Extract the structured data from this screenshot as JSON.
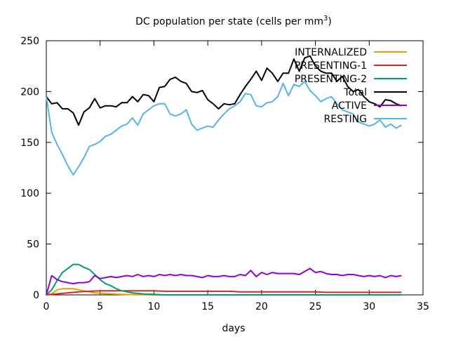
{
  "chart_data": {
    "type": "line",
    "title": "DC population per state (cells per mm",
    "title_superscript": "3",
    "title_suffix": ")",
    "xlabel": "days",
    "ylabel": "",
    "xlim": [
      0,
      35
    ],
    "ylim": [
      0,
      250
    ],
    "xticks": [
      0,
      5,
      10,
      15,
      20,
      25,
      30,
      35
    ],
    "yticks": [
      0,
      50,
      100,
      150,
      200,
      250
    ],
    "grid": false,
    "legend_position": "top-right",
    "series": [
      {
        "name": "INTERNALIZED",
        "color": "#e69f00",
        "x": [
          0,
          0.5,
          1,
          1.5,
          2,
          2.5,
          3,
          3.5,
          4,
          4.5,
          5,
          6,
          7,
          8,
          9,
          10,
          11,
          12,
          13,
          14,
          15,
          16,
          17,
          18,
          19,
          20,
          21,
          22,
          23,
          24,
          25,
          26,
          27,
          28,
          29,
          30,
          31,
          32,
          33
        ],
        "y": [
          0,
          1,
          5,
          6,
          6,
          6,
          5,
          4,
          3,
          2,
          1.5,
          1,
          0.5,
          0.3,
          0.2,
          0,
          0,
          0,
          0,
          0,
          0,
          0,
          0,
          0,
          0,
          0,
          0,
          0,
          0,
          0,
          0,
          0,
          0,
          0,
          0,
          0,
          0,
          0,
          0
        ]
      },
      {
        "name": "PRESENTING-1",
        "color": "#d62728",
        "x": [
          0,
          1,
          2,
          3,
          4,
          5,
          6,
          7,
          8,
          9,
          10,
          11,
          12,
          13,
          14,
          15,
          16,
          17,
          18,
          19,
          20,
          21,
          22,
          23,
          24,
          25,
          26,
          27,
          28,
          29,
          30,
          31,
          32,
          33
        ],
        "y": [
          0,
          1,
          2,
          3,
          3.5,
          4,
          4,
          4,
          4,
          4,
          4,
          3.5,
          3.5,
          3.5,
          3.5,
          3.5,
          3.5,
          3.5,
          3,
          3,
          3,
          3,
          3,
          3,
          3,
          3,
          2.5,
          2.5,
          2.5,
          2.5,
          2.5,
          2.5,
          2.5,
          2.5
        ]
      },
      {
        "name": "PRESENTING-2",
        "color": "#009e73",
        "x": [
          0,
          0.5,
          1,
          1.5,
          2,
          2.5,
          3,
          3.5,
          4,
          4.5,
          5,
          5.5,
          6,
          6.5,
          7,
          7.5,
          8,
          9,
          10,
          11,
          12,
          13,
          14,
          15,
          16,
          17,
          18,
          19,
          20,
          21,
          22,
          23,
          24,
          25,
          26,
          27,
          28,
          29,
          30,
          31,
          32,
          33
        ],
        "y": [
          0,
          5,
          14,
          22,
          26,
          30,
          30,
          27,
          25,
          20,
          15,
          11,
          9,
          6,
          4,
          3,
          2,
          1,
          0.5,
          0,
          0,
          0,
          0,
          0,
          0,
          0,
          0,
          0,
          0,
          0,
          0,
          0,
          0,
          0,
          0,
          0,
          0,
          0,
          0,
          0,
          0,
          0
        ]
      },
      {
        "name": "Total",
        "color": "#000000",
        "x": [
          0,
          0.5,
          1,
          1.5,
          2,
          2.5,
          3,
          3.5,
          4,
          4.5,
          5,
          5.5,
          6,
          6.5,
          7,
          7.5,
          8,
          8.5,
          9,
          9.5,
          10,
          10.5,
          11,
          11.5,
          12,
          12.5,
          13,
          13.5,
          14,
          14.5,
          15,
          15.5,
          16,
          16.5,
          17,
          17.5,
          18,
          18.5,
          19,
          19.5,
          20,
          20.5,
          21,
          21.5,
          22,
          22.5,
          23,
          23.5,
          24,
          24.5,
          25,
          25.5,
          26,
          26.5,
          27,
          27.5,
          28,
          28.5,
          29,
          29.5,
          30,
          30.5,
          31,
          31.5,
          32,
          32.5,
          33
        ],
        "y": [
          195,
          188,
          189,
          183,
          183,
          179,
          167,
          180,
          184,
          193,
          184,
          186,
          186,
          185,
          189,
          189,
          195,
          190,
          197,
          196,
          190,
          204,
          205,
          212,
          214,
          210,
          208,
          200,
          199,
          201,
          192,
          188,
          183,
          188,
          187,
          188,
          197,
          205,
          212,
          220,
          211,
          223,
          218,
          210,
          218,
          218,
          232,
          220,
          233,
          235,
          225,
          220,
          218,
          218,
          210,
          215,
          205,
          200,
          202,
          195,
          190,
          188,
          185,
          192,
          191,
          188,
          186
        ]
      },
      {
        "name": "ACTIVE",
        "color": "#9400d3",
        "x": [
          0,
          0.5,
          1,
          1.5,
          2,
          2.5,
          3,
          3.5,
          4,
          4.5,
          5,
          5.5,
          6,
          6.5,
          7,
          7.5,
          8,
          8.5,
          9,
          9.5,
          10,
          10.5,
          11,
          11.5,
          12,
          12.5,
          13,
          13.5,
          14,
          14.5,
          15,
          15.5,
          16,
          16.5,
          17,
          17.5,
          18,
          18.5,
          19,
          19.5,
          20,
          20.5,
          21,
          21.5,
          22,
          22.5,
          23,
          23.5,
          24,
          24.5,
          25,
          25.5,
          26,
          26.5,
          27,
          27.5,
          28,
          28.5,
          29,
          29.5,
          30,
          30.5,
          31,
          31.5,
          32,
          32.5,
          33
        ],
        "y": [
          0,
          19,
          15,
          13,
          12,
          11,
          12,
          12,
          13,
          19,
          16,
          17,
          18,
          17,
          18,
          19,
          18,
          20,
          18,
          19,
          18,
          20,
          19,
          20,
          19,
          20,
          19,
          19,
          18,
          17,
          19,
          18,
          18,
          19,
          18,
          18,
          20,
          19,
          24,
          18,
          22,
          20,
          22,
          21,
          21,
          21,
          21,
          20,
          23,
          26,
          22,
          23,
          21,
          20,
          20,
          19,
          20,
          20,
          19,
          18,
          19,
          18,
          19,
          17,
          19,
          18,
          19
        ]
      },
      {
        "name": "RESTING",
        "color": "#56b4e9",
        "x": [
          0,
          0.5,
          1,
          1.5,
          2,
          2.5,
          3,
          3.5,
          4,
          4.5,
          5,
          5.5,
          6,
          6.5,
          7,
          7.5,
          8,
          8.5,
          9,
          9.5,
          10,
          10.5,
          11,
          11.5,
          12,
          12.5,
          13,
          13.5,
          14,
          14.5,
          15,
          15.5,
          16,
          16.5,
          17,
          17.5,
          18,
          18.5,
          19,
          19.5,
          20,
          20.5,
          21,
          21.5,
          22,
          22.5,
          23,
          23.5,
          24,
          24.5,
          25,
          25.5,
          26,
          26.5,
          27,
          27.5,
          28,
          28.5,
          29,
          29.5,
          30,
          30.5,
          31,
          31.5,
          32,
          32.5,
          33
        ],
        "y": [
          195,
          160,
          148,
          138,
          127,
          118,
          126,
          135,
          146,
          148,
          151,
          156,
          158,
          162,
          166,
          168,
          174,
          167,
          178,
          182,
          186,
          188,
          188,
          178,
          176,
          178,
          182,
          168,
          162,
          164,
          166,
          165,
          172,
          178,
          183,
          186,
          190,
          198,
          197,
          186,
          185,
          189,
          190,
          195,
          208,
          196,
          207,
          205,
          210,
          201,
          196,
          190,
          193,
          195,
          188,
          182,
          180,
          178,
          170,
          168,
          166,
          168,
          172,
          165,
          168,
          164,
          167
        ]
      }
    ]
  }
}
